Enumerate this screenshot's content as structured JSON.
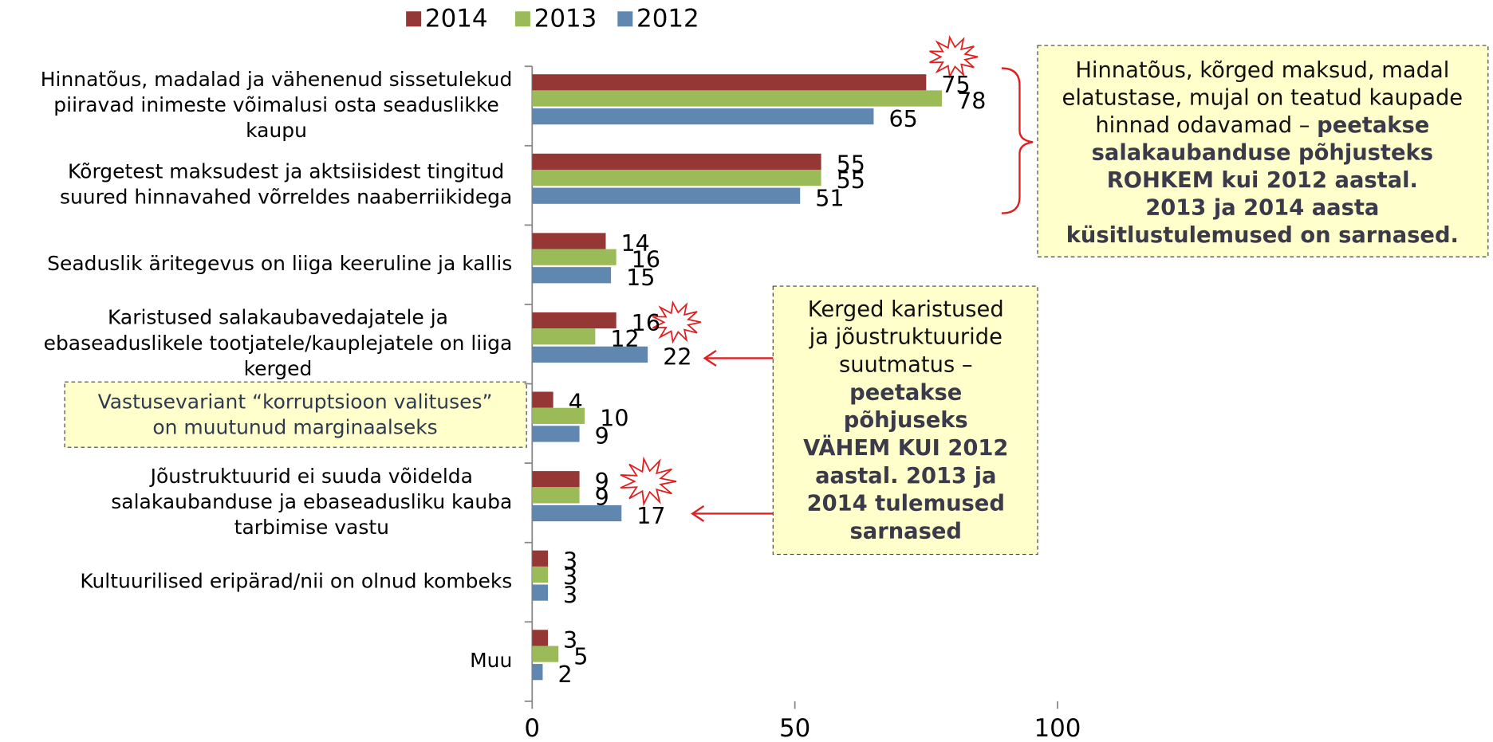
{
  "chart_data": {
    "type": "hbar",
    "categories": [
      [
        "Hinnatõus, madalad ja vähenenud sissetulekud",
        "piiravad inimeste võimalusi osta  seaduslikke",
        "kaupu"
      ],
      [
        "Kõrgetest maksudest ja aktsiisidest tingitud",
        "suured hinnavahed võrreldes naaberriikidega"
      ],
      [
        "Seaduslik äritegevus on liiga keeruline ja kallis"
      ],
      [
        "Karistused salakaubavedajatele ja",
        "ebaseaduslikele tootjatele/kauplejatele on liiga",
        "kerged"
      ],
      [],
      [
        "Jõustruktuurid ei suuda võidelda",
        "salakaubanduse ja ebaseadusliku kauba",
        "tarbimise vastu"
      ],
      [
        "Kultuurilised eripärad/nii on olnud kombeks"
      ],
      [
        "Muu"
      ]
    ],
    "series": [
      {
        "name": "2014",
        "color": "#953735",
        "values": [
          75,
          55,
          14,
          16,
          4,
          9,
          3,
          3
        ]
      },
      {
        "name": "2013",
        "color": "#9bbb59",
        "values": [
          78,
          55,
          16,
          12,
          10,
          9,
          3,
          5
        ]
      },
      {
        "name": "2012",
        "color": "#5f87b0",
        "values": [
          65,
          51,
          15,
          22,
          9,
          17,
          3,
          2
        ]
      }
    ],
    "xlim": [
      0,
      100
    ],
    "xticks": [
      0,
      50,
      100
    ],
    "annotations": [
      {
        "lines": [
          [
            {
              "text": "Hinnatõus, kõrged maksud, madal",
              "bold": false
            }
          ],
          [
            {
              "text": "elatustase, mujal on teatud kaupade",
              "bold": false
            }
          ],
          [
            {
              "text": "hinnad odavamad – ",
              "bold": false
            },
            {
              "text": "peetakse",
              "bold": true
            }
          ],
          [
            {
              "text": "salakaubanduse põhjusteks",
              "bold": true
            }
          ],
          [
            {
              "text": "ROHKEM kui 2012 aastal.",
              "bold": true
            }
          ],
          [
            {
              "text": "2013 ja 2014 aasta",
              "bold": true
            }
          ],
          [
            {
              "text": "küsitlustulemused on sarnased.",
              "bold": true
            }
          ]
        ]
      },
      {
        "lines": [
          [
            {
              "text": "Kerged karistused",
              "bold": false
            }
          ],
          [
            {
              "text": "ja jõustruktuuride",
              "bold": false
            }
          ],
          [
            {
              "text": "suutmatus –",
              "bold": false
            }
          ],
          [
            {
              "text": "peetakse",
              "bold": true
            }
          ],
          [
            {
              "text": "põhjuseks",
              "bold": true
            }
          ],
          [
            {
              "text": "VÄHEM KUI 2012",
              "bold": true
            }
          ],
          [
            {
              "text": "aastal. 2013 ja",
              "bold": true
            }
          ],
          [
            {
              "text": "2014 tulemused",
              "bold": true
            }
          ],
          [
            {
              "text": "sarnased",
              "bold": true
            }
          ]
        ]
      },
      {
        "lines": [
          [
            {
              "text": "Vastusevariant “korruptsioon valituses”",
              "bold": false
            }
          ],
          [
            {
              "text": "on muutunud marginaalseks",
              "bold": false
            }
          ]
        ]
      }
    ]
  }
}
